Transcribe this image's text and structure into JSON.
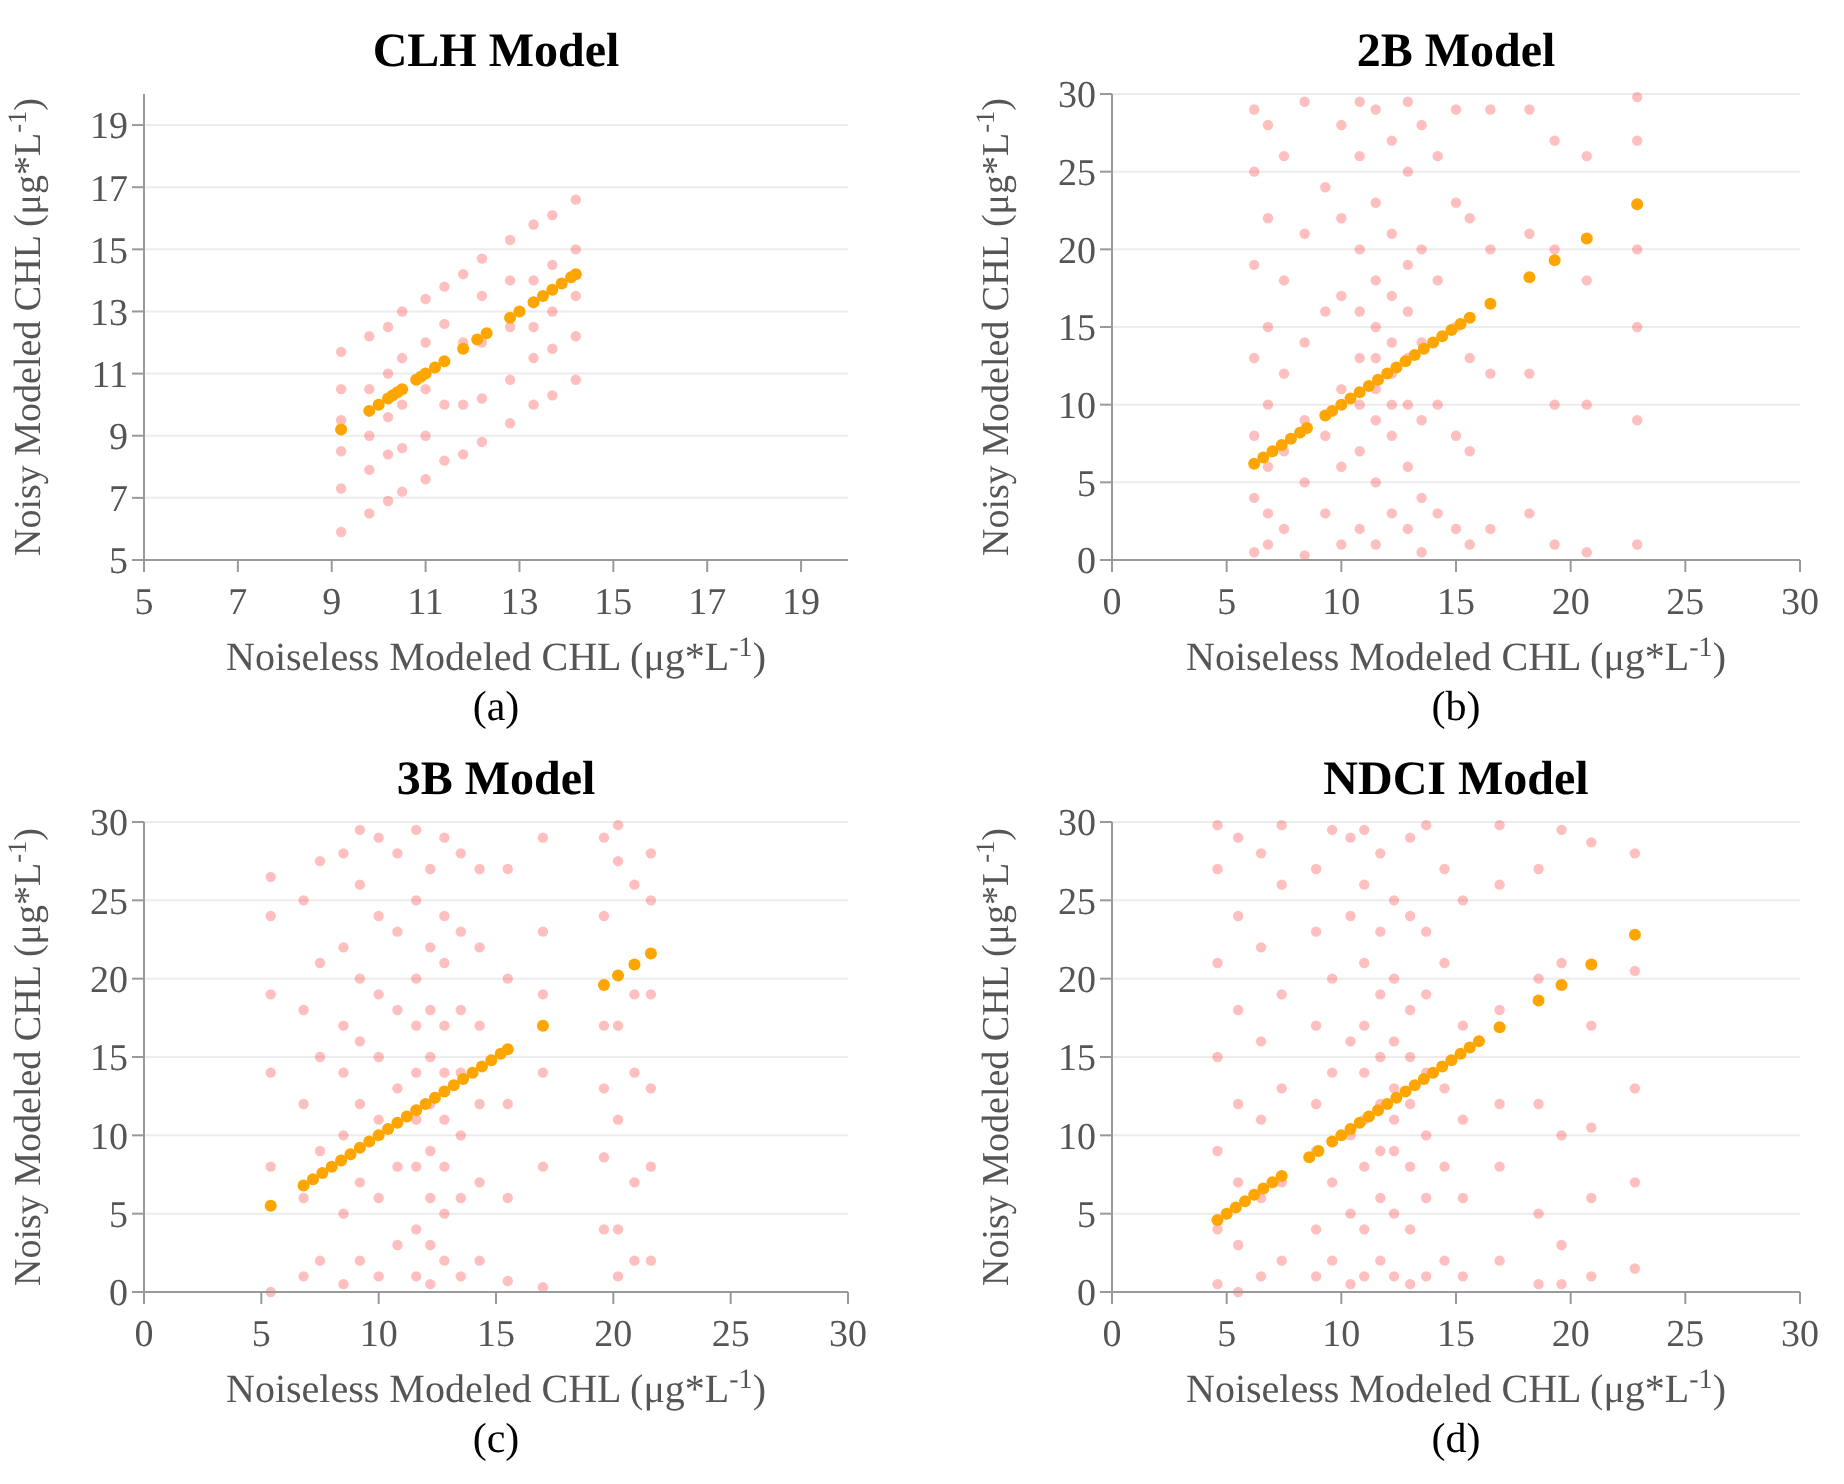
{
  "chart_data": [
    {
      "type": "scatter",
      "title": "CLH Model",
      "xlabel": "Noiseless Modeled CHL (μg*L$^{-1}$)",
      "ylabel": "Noisy Modeled CHL (μg*L$^{-1}$)",
      "annotations": [
        "(a)"
      ],
      "xlim": [
        5,
        20
      ],
      "ylim": [
        5,
        20
      ],
      "xticks": [
        5,
        7,
        9,
        11,
        13,
        15,
        17,
        19
      ],
      "yticks": [
        5,
        7,
        9,
        11,
        13,
        15,
        17,
        19
      ],
      "grid": "y",
      "marker": "circle",
      "series": [
        {
          "color": "#ff0000",
          "x": [
            9.2,
            9.2,
            9.2,
            9.2,
            9.2,
            9.2,
            9.8,
            9.8,
            9.8,
            9.8,
            9.8,
            10.2,
            10.2,
            10.2,
            10.2,
            10.2,
            10.5,
            10.5,
            10.5,
            10.5,
            10.5,
            11,
            11,
            11,
            11,
            11,
            11.4,
            11.4,
            11.4,
            11.4,
            11.8,
            11.8,
            11.8,
            11.8,
            12.2,
            12.2,
            12.2,
            12.2,
            12.2,
            12.8,
            12.8,
            12.8,
            12.8,
            12.8,
            13.3,
            13.3,
            13.3,
            13.3,
            13.3,
            13.7,
            13.7,
            13.7,
            13.7,
            13.7,
            14.2,
            14.2,
            14.2,
            14.2,
            14.2
          ],
          "values": [
            5.9,
            7.3,
            8.5,
            9.5,
            10.5,
            11.7,
            6.5,
            7.9,
            9,
            10.5,
            12.2,
            6.9,
            8.4,
            9.6,
            11,
            12.5,
            7.2,
            8.6,
            10,
            11.5,
            13,
            7.6,
            9,
            10.5,
            12,
            13.4,
            8.2,
            10,
            12.6,
            13.8,
            8.4,
            10,
            12,
            14.2,
            8.8,
            10.2,
            12,
            13.5,
            14.7,
            9.4,
            10.8,
            12.5,
            14,
            15.3,
            10,
            11.5,
            12.5,
            14,
            15.8,
            10.3,
            11.8,
            13,
            14.5,
            16.1,
            10.8,
            12.2,
            13.5,
            15,
            16.6
          ]
        },
        {
          "color": "#ffa500",
          "x": [
            9.2,
            9.8,
            10,
            10.2,
            10.3,
            10.4,
            10.5,
            10.8,
            10.9,
            11,
            11.2,
            11.4,
            11.8,
            12.1,
            12.3,
            12.8,
            13,
            13.3,
            13.5,
            13.7,
            13.9,
            14.1,
            14.2
          ],
          "values": [
            9.2,
            9.8,
            10,
            10.2,
            10.3,
            10.4,
            10.5,
            10.8,
            10.9,
            11,
            11.2,
            11.4,
            11.8,
            12.1,
            12.3,
            12.8,
            13,
            13.3,
            13.5,
            13.7,
            13.9,
            14.1,
            14.2
          ]
        }
      ]
    },
    {
      "type": "scatter",
      "title": "2B Model",
      "xlabel": "Noiseless Modeled CHL (μg*L$^{-1}$)",
      "ylabel": "Noisy Modeled CHL (μg*L$^{-1}$)",
      "annotations": [
        "(b)"
      ],
      "xlim": [
        0,
        30
      ],
      "ylim": [
        0,
        30
      ],
      "xticks": [
        0,
        5,
        10,
        15,
        20,
        25,
        30
      ],
      "yticks": [
        0,
        5,
        10,
        15,
        20,
        25,
        30
      ],
      "grid": "y",
      "marker": "circle",
      "series": [
        {
          "color": "#ff0000",
          "x": [
            6.2,
            6.2,
            6.2,
            6.2,
            6.2,
            6.2,
            6.2,
            6.8,
            6.8,
            6.8,
            6.8,
            6.8,
            6.8,
            6.8,
            7.5,
            7.5,
            7.5,
            7.5,
            7.5,
            8.4,
            8.4,
            8.4,
            8.4,
            8.4,
            8.4,
            9.3,
            9.3,
            9.3,
            9.3,
            10,
            10,
            10,
            10,
            10,
            10,
            10.8,
            10.8,
            10.8,
            10.8,
            10.8,
            10.8,
            10.8,
            10.8,
            11.5,
            11.5,
            11.5,
            11.5,
            11.5,
            11.5,
            11.5,
            11.5,
            11.5,
            12.2,
            12.2,
            12.2,
            12.2,
            12.2,
            12.2,
            12.2,
            12.2,
            12.9,
            12.9,
            12.9,
            12.9,
            12.9,
            12.9,
            12.9,
            12.9,
            13.5,
            13.5,
            13.5,
            13.5,
            13.5,
            13.5,
            14.2,
            14.2,
            14.2,
            14.2,
            15,
            15,
            15,
            15,
            15,
            15.6,
            15.6,
            15.6,
            15.6,
            16.5,
            16.5,
            16.5,
            16.5,
            18.2,
            18.2,
            18.2,
            18.2,
            19.3,
            19.3,
            19.3,
            19.3,
            20.7,
            20.7,
            20.7,
            20.7,
            22.9,
            22.9,
            22.9,
            22.9,
            22.9,
            22.9
          ],
          "values": [
            0.5,
            4,
            8,
            13,
            19,
            25,
            29,
            1,
            3,
            6,
            10,
            15,
            22,
            28,
            2,
            7,
            12,
            18,
            26,
            0.3,
            5,
            9,
            14,
            21,
            29.5,
            3,
            8,
            16,
            24,
            1,
            6,
            11,
            17,
            22,
            28,
            2,
            7,
            10,
            13,
            16,
            20,
            26,
            29.5,
            1,
            5,
            9,
            11,
            13,
            15,
            18,
            23,
            29,
            3,
            8,
            10,
            12,
            14,
            17,
            21,
            27,
            2,
            6,
            10,
            13,
            16,
            19,
            25,
            29.5,
            0.5,
            4,
            9,
            14,
            20,
            28,
            3,
            10,
            18,
            26,
            2,
            8,
            15,
            23,
            29,
            1,
            7,
            13,
            22,
            2,
            12,
            20,
            29,
            3,
            12,
            21,
            29,
            1,
            10,
            20,
            27,
            0.5,
            10,
            18,
            26,
            1,
            9,
            15,
            20,
            27,
            29.8
          ]
        },
        {
          "color": "#ffa500",
          "x": [
            6.2,
            6.6,
            7,
            7.4,
            7.8,
            8.2,
            8.5,
            9.3,
            9.6,
            10,
            10.4,
            10.8,
            11.2,
            11.6,
            12,
            12.4,
            12.8,
            13.2,
            13.6,
            14,
            14.4,
            14.8,
            15.2,
            15.6,
            16.5,
            18.2,
            19.3,
            20.7,
            22.9
          ],
          "values": [
            6.2,
            6.6,
            7,
            7.4,
            7.8,
            8.2,
            8.5,
            9.3,
            9.6,
            10,
            10.4,
            10.8,
            11.2,
            11.6,
            12,
            12.4,
            12.8,
            13.2,
            13.6,
            14,
            14.4,
            14.8,
            15.2,
            15.6,
            16.5,
            18.2,
            19.3,
            20.7,
            22.9
          ]
        }
      ]
    },
    {
      "type": "scatter",
      "title": "3B Model",
      "xlabel": "Noiseless Modeled CHL (μg*L$^{-1}$)",
      "ylabel": "Noisy Modeled CHL (μg*L$^{-1}$)",
      "annotations": [
        "(c)"
      ],
      "xlim": [
        0,
        30
      ],
      "ylim": [
        0,
        30
      ],
      "xticks": [
        0,
        5,
        10,
        15,
        20,
        25,
        30
      ],
      "yticks": [
        0,
        5,
        10,
        15,
        20,
        25,
        30
      ],
      "grid": "y",
      "marker": "circle",
      "series": [
        {
          "color": "#ff0000",
          "x": [
            5.4,
            5.4,
            5.4,
            5.4,
            5.4,
            5.4,
            6.8,
            6.8,
            6.8,
            6.8,
            6.8,
            7.5,
            7.5,
            7.5,
            7.5,
            7.5,
            8.5,
            8.5,
            8.5,
            8.5,
            8.5,
            8.5,
            8.5,
            9.2,
            9.2,
            9.2,
            9.2,
            9.2,
            9.2,
            9.2,
            10,
            10,
            10,
            10,
            10,
            10,
            10,
            10.8,
            10.8,
            10.8,
            10.8,
            10.8,
            10.8,
            11.6,
            11.6,
            11.6,
            11.6,
            11.6,
            11.6,
            11.6,
            11.6,
            11.6,
            12.2,
            12.2,
            12.2,
            12.2,
            12.2,
            12.2,
            12.2,
            12.2,
            12.2,
            12.8,
            12.8,
            12.8,
            12.8,
            12.8,
            12.8,
            12.8,
            12.8,
            12.8,
            13.5,
            13.5,
            13.5,
            13.5,
            13.5,
            13.5,
            13.5,
            14.3,
            14.3,
            14.3,
            14.3,
            14.3,
            14.3,
            15.5,
            15.5,
            15.5,
            15.5,
            15.5,
            17,
            17,
            17,
            17,
            17,
            17,
            19.6,
            19.6,
            19.6,
            19.6,
            19.6,
            19.6,
            20.2,
            20.2,
            20.2,
            20.2,
            20.2,
            20.2,
            20.9,
            20.9,
            20.9,
            20.9,
            20.9,
            21.6,
            21.6,
            21.6,
            21.6,
            21.6,
            21.6
          ],
          "values": [
            0,
            8,
            14,
            19,
            24,
            26.5,
            1,
            6,
            12,
            18,
            25,
            2,
            9,
            15,
            21,
            27.5,
            0.5,
            5,
            10,
            14,
            17,
            22,
            28,
            2,
            7,
            12,
            16,
            20,
            26,
            29.5,
            1,
            6,
            11,
            15,
            19,
            24,
            29,
            3,
            8,
            13,
            18,
            23,
            28,
            1,
            4,
            8,
            11,
            14,
            17,
            20,
            25,
            29.5,
            0.5,
            3,
            6,
            9,
            12,
            15,
            18,
            22,
            27,
            2,
            5,
            8,
            11,
            14,
            17,
            21,
            24,
            29,
            1,
            6,
            10,
            14,
            18,
            23,
            28,
            2,
            7,
            12,
            17,
            22,
            27,
            0.7,
            6,
            12,
            20,
            27,
            0.3,
            8,
            14,
            19,
            23,
            29,
            4,
            8.6,
            13,
            17,
            24,
            29,
            1,
            4,
            11,
            17,
            27.5,
            29.8,
            2,
            7,
            14,
            19,
            26,
            2,
            8,
            13,
            19,
            25,
            28
          ]
        },
        {
          "color": "#ffa500",
          "x": [
            5.4,
            6.8,
            7.2,
            7.6,
            8,
            8.4,
            8.8,
            9.2,
            9.6,
            10,
            10.4,
            10.8,
            11.2,
            11.6,
            12,
            12.4,
            12.8,
            13.2,
            13.6,
            14,
            14.4,
            14.8,
            15.2,
            15.5,
            17,
            19.6,
            20.2,
            20.9,
            21.6
          ],
          "values": [
            5.5,
            6.8,
            7.2,
            7.6,
            8,
            8.4,
            8.8,
            9.2,
            9.6,
            10,
            10.4,
            10.8,
            11.2,
            11.6,
            12,
            12.4,
            12.8,
            13.2,
            13.6,
            14,
            14.4,
            14.8,
            15.2,
            15.5,
            17,
            19.6,
            20.2,
            20.9,
            21.6
          ]
        }
      ]
    },
    {
      "type": "scatter",
      "title": "NDCI Model",
      "xlabel": "Noiseless Modeled CHL (μg*L$^{-1}$)",
      "ylabel": "Noisy Modeled CHL (μg*L$^{-1}$)",
      "annotations": [
        "(d)"
      ],
      "xlim": [
        0,
        30
      ],
      "ylim": [
        0,
        30
      ],
      "xticks": [
        0,
        5,
        10,
        15,
        20,
        25,
        30
      ],
      "yticks": [
        0,
        5,
        10,
        15,
        20,
        25,
        30
      ],
      "grid": "y",
      "marker": "circle",
      "series": [
        {
          "color": "#ff0000",
          "x": [
            4.6,
            4.6,
            4.6,
            4.6,
            4.6,
            4.6,
            4.6,
            5.5,
            5.5,
            5.5,
            5.5,
            5.5,
            5.5,
            5.5,
            6.5,
            6.5,
            6.5,
            6.5,
            6.5,
            6.5,
            7.4,
            7.4,
            7.4,
            7.4,
            7.4,
            7.4,
            8.9,
            8.9,
            8.9,
            8.9,
            8.9,
            8.9,
            8.9,
            9.6,
            9.6,
            9.6,
            9.6,
            9.6,
            10.4,
            10.4,
            10.4,
            10.4,
            10.4,
            10.4,
            11,
            11,
            11,
            11,
            11,
            11,
            11,
            11,
            11,
            11.7,
            11.7,
            11.7,
            11.7,
            11.7,
            11.7,
            11.7,
            11.7,
            12.3,
            12.3,
            12.3,
            12.3,
            12.3,
            12.3,
            12.3,
            12.3,
            13,
            13,
            13,
            13,
            13,
            13,
            13,
            13,
            13.7,
            13.7,
            13.7,
            13.7,
            13.7,
            13.7,
            13.7,
            14.5,
            14.5,
            14.5,
            14.5,
            14.5,
            15.3,
            15.3,
            15.3,
            15.3,
            15.3,
            16.9,
            16.9,
            16.9,
            16.9,
            16.9,
            16.9,
            18.6,
            18.6,
            18.6,
            18.6,
            18.6,
            19.6,
            19.6,
            19.6,
            19.6,
            19.6,
            20.9,
            20.9,
            20.9,
            20.9,
            20.9,
            22.8,
            22.8,
            22.8,
            22.8,
            22.8
          ],
          "values": [
            0.5,
            4,
            9,
            15,
            21,
            27,
            29.8,
            0,
            3,
            7,
            12,
            18,
            24,
            29,
            1,
            6,
            11,
            16,
            22,
            28,
            2,
            7,
            13,
            19,
            26,
            29.8,
            1,
            4,
            9,
            12,
            17,
            23,
            27,
            2,
            7,
            14,
            20,
            29.5,
            0.5,
            5,
            10,
            16,
            24,
            29,
            1,
            4,
            8,
            11,
            14,
            17,
            21,
            26,
            29.5,
            2,
            6,
            9,
            12,
            15,
            19,
            23,
            28,
            1,
            5,
            9,
            11,
            13,
            16,
            20,
            25,
            0.5,
            4,
            8,
            12,
            15,
            18,
            24,
            29,
            1,
            6,
            10,
            14,
            19,
            23,
            29.8,
            2,
            8,
            13,
            21,
            27,
            1,
            6,
            11,
            17,
            25,
            2,
            8,
            12,
            18,
            26,
            29.8,
            0.5,
            5,
            12,
            20,
            27,
            0.5,
            3,
            10,
            21,
            29.5,
            1,
            6,
            10.5,
            17,
            28.7,
            1.5,
            7,
            13,
            20.5,
            28
          ]
        },
        {
          "color": "#ffa500",
          "x": [
            4.6,
            5,
            5.4,
            5.8,
            6.2,
            6.6,
            7,
            7.4,
            8.6,
            9,
            9.6,
            10,
            10.4,
            10.8,
            11.2,
            11.6,
            12,
            12.4,
            12.8,
            13.2,
            13.6,
            14,
            14.4,
            14.8,
            15.2,
            15.6,
            16,
            16.9,
            18.6,
            19.6,
            20.9,
            22.8
          ],
          "values": [
            4.6,
            5,
            5.4,
            5.8,
            6.2,
            6.6,
            7,
            7.4,
            8.6,
            9,
            9.6,
            10,
            10.4,
            10.8,
            11.2,
            11.6,
            12,
            12.4,
            12.8,
            13.2,
            13.6,
            14,
            14.4,
            14.8,
            15.2,
            15.6,
            16,
            16.9,
            18.6,
            19.6,
            20.9,
            22.8
          ]
        }
      ]
    }
  ]
}
